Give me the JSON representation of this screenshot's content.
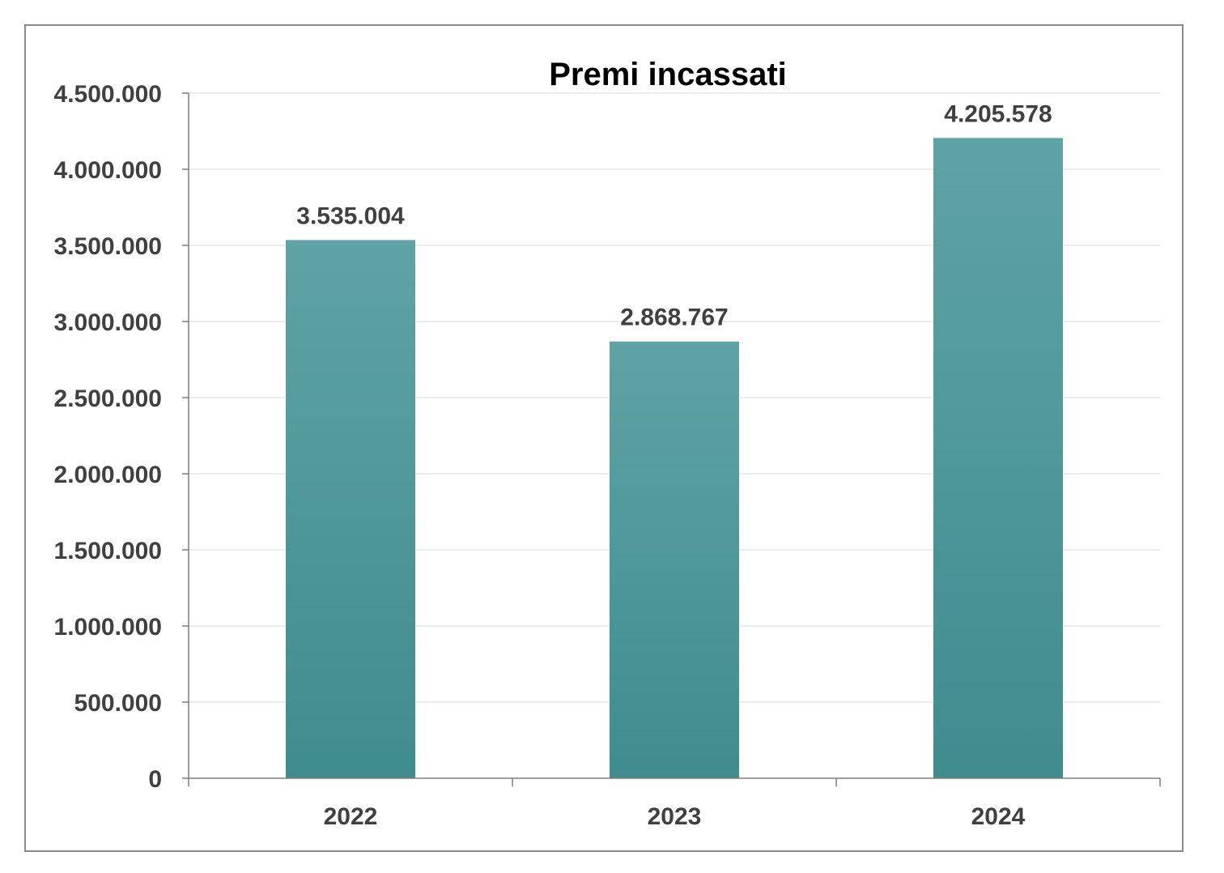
{
  "chart_data": {
    "type": "bar",
    "title": "Premi incassati",
    "xlabel": "",
    "ylabel": "",
    "categories": [
      "2022",
      "2023",
      "2024"
    ],
    "values": [
      3535004,
      2868767,
      4205578
    ],
    "data_labels": [
      "3.535.004",
      "2.868.767",
      "4.205.578"
    ],
    "ylim": [
      0,
      4500000
    ],
    "yticks": [
      0,
      500000,
      1000000,
      1500000,
      2000000,
      2500000,
      3000000,
      3500000,
      4000000,
      4500000
    ],
    "ytick_labels": [
      "0",
      "500.000",
      "1.000.000",
      "1.500.000",
      "2.000.000",
      "2.500.000",
      "3.000.000",
      "3.500.000",
      "4.000.000",
      "4.500.000"
    ],
    "grid": true,
    "legend": "none",
    "colors": {
      "bar_top": "#5fa3a4",
      "bar_bottom": "#3f8c8f",
      "grid": "#e6e6e6",
      "axis": "#7f7f7f"
    }
  }
}
